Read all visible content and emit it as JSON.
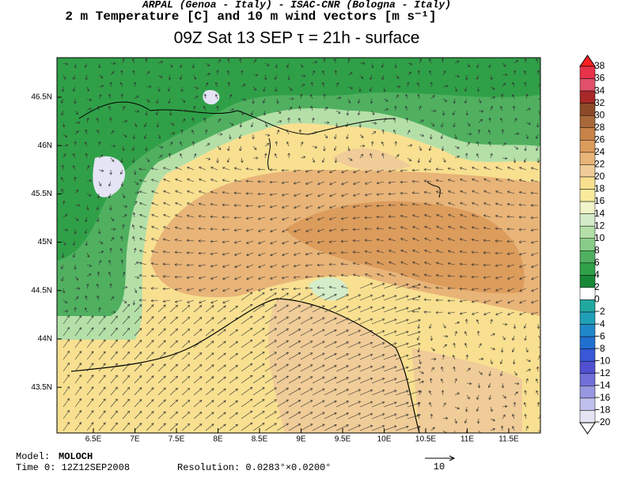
{
  "header": {
    "line1": "ARPAL (Genoa - Italy)  -  ISAC-CNR (Bologna - Italy)",
    "line2": "2 m Temperature [C] and 10 m wind vectors [m s⁻¹]",
    "line3": "09Z Sat 13 SEP  τ = 21h  -  surface"
  },
  "map": {
    "lat_labels": [
      "46.5N",
      "46N",
      "45.5N",
      "45N",
      "44.5N",
      "44N",
      "43.5N"
    ],
    "lon_labels": [
      "6.5E",
      "7E",
      "7.5E",
      "8E",
      "8.5E",
      "9E",
      "9.5E",
      "10E",
      "10.5E",
      "11E",
      "11.5E"
    ]
  },
  "colorbar": {
    "labels": [
      "38",
      "36",
      "34",
      "32",
      "30",
      "28",
      "26",
      "24",
      "22",
      "20",
      "18",
      "16",
      "14",
      "12",
      "10",
      "8",
      "6",
      "4",
      "2",
      "0",
      "−2",
      "−4",
      "−6",
      "−8",
      "−10",
      "−12",
      "−14",
      "−16",
      "−18",
      "−20"
    ],
    "colors": [
      "#ff2020",
      "#e8324a",
      "#e0506a",
      "#a82828",
      "#8c4a28",
      "#a8683a",
      "#c88448",
      "#dc9c5c",
      "#e8b478",
      "#f0cc98",
      "#f8e090",
      "#f8ec9c",
      "#f0f4c8",
      "#d4ecc8",
      "#b4e0a8",
      "#88cc88",
      "#50b060",
      "#30a048",
      "#188838",
      "#ffffff",
      "#20a8a0",
      "#20a0b8",
      "#2088c8",
      "#2070d0",
      "#3858d8",
      "#5050d0",
      "#7070d8",
      "#9898e0",
      "#c0c0ec",
      "#e4e4f4",
      "#ffffff"
    ]
  },
  "footer": {
    "model_label": "Model:",
    "model": "MOLOCH",
    "time": "Time 0: 12Z12SEP2008",
    "resolution": "Resolution: 0.0283°×0.0200°",
    "vector_ref": "10"
  }
}
